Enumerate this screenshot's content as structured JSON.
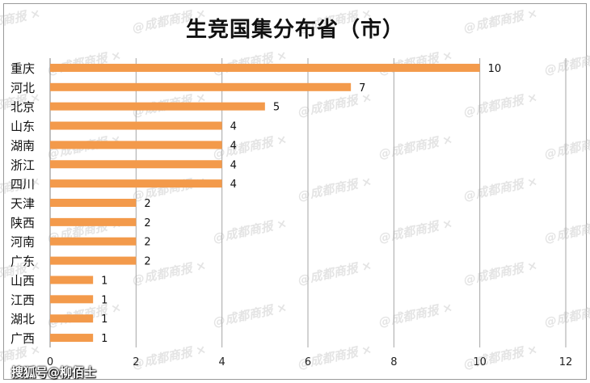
{
  "chart_data": {
    "type": "bar",
    "orientation": "horizontal",
    "title": "生竞国集分布省（市）",
    "xlabel": "",
    "ylabel": "",
    "categories": [
      "重庆",
      "河北",
      "北京",
      "山东",
      "湖南",
      "浙江",
      "四川",
      "天津",
      "陕西",
      "河南",
      "广东",
      "山西",
      "江西",
      "湖北",
      "广西"
    ],
    "values": [
      10,
      7,
      5,
      4,
      4,
      4,
      4,
      2,
      2,
      2,
      2,
      1,
      1,
      1,
      1
    ],
    "xlim": [
      0,
      12
    ],
    "xticks": [
      0,
      2,
      4,
      6,
      8,
      10,
      12
    ],
    "grid": "vertical",
    "legend": "none",
    "bar_color": "#f39a4b",
    "grid_color": "#a6a6a6"
  },
  "watermark": {
    "repeat_text": "@成都商报 ×",
    "credit": "搜狐号@柳佰士"
  }
}
